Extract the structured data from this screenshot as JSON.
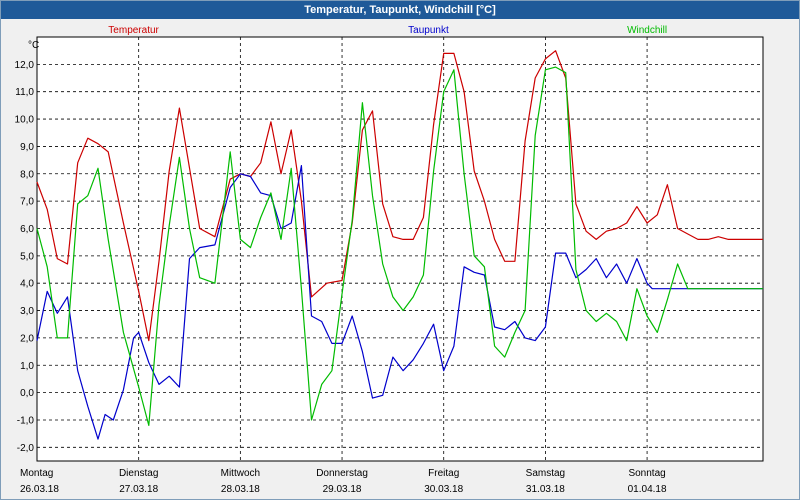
{
  "window": {
    "title": "Temperatur, Taupunkt, Windchill [°C]"
  },
  "chart_data": {
    "type": "line",
    "title": "Temperatur, Taupunkt, Windchill [°C]",
    "ylabel": "°C",
    "ylim": [
      -2.5,
      13.0
    ],
    "yticks": [
      -2.0,
      -1.0,
      0.0,
      1.0,
      2.0,
      3.0,
      4.0,
      5.0,
      6.0,
      7.0,
      8.0,
      9.0,
      10.0,
      11.0,
      12.0
    ],
    "ytick_labels": [
      "-2,0",
      "-1,0",
      "0,0",
      "1,0",
      "2,0",
      "3,0",
      "4,0",
      "5,0",
      "6,0",
      "7,0",
      "8,0",
      "9,0",
      "10,0",
      "11,0",
      "12,0"
    ],
    "xlim_days": [
      0,
      7.14
    ],
    "x_unit": "days since 26.03.18 00:00",
    "days": [
      {
        "weekday": "Montag",
        "date": "26.03.18"
      },
      {
        "weekday": "Dienstag",
        "date": "27.03.18"
      },
      {
        "weekday": "Mittwoch",
        "date": "28.03.18"
      },
      {
        "weekday": "Donnerstag",
        "date": "29.03.18"
      },
      {
        "weekday": "Freitag",
        "date": "30.03.18"
      },
      {
        "weekday": "Samstag",
        "date": "31.03.18"
      },
      {
        "weekday": "Sonntag",
        "date": "01.04.18"
      }
    ],
    "grid": true,
    "series": [
      {
        "name": "Temperatur",
        "color": "#cc0000",
        "x": [
          0.0,
          0.1,
          0.2,
          0.3,
          0.4,
          0.5,
          0.6,
          0.7,
          0.85,
          1.0,
          1.1,
          1.2,
          1.3,
          1.4,
          1.6,
          1.75,
          1.9,
          2.0,
          2.1,
          2.2,
          2.3,
          2.4,
          2.5,
          2.6,
          2.7,
          2.85,
          3.0,
          3.1,
          3.2,
          3.3,
          3.4,
          3.5,
          3.6,
          3.7,
          3.8,
          3.9,
          4.0,
          4.1,
          4.2,
          4.3,
          4.4,
          4.5,
          4.6,
          4.7,
          4.8,
          4.9,
          5.0,
          5.1,
          5.2,
          5.3,
          5.4,
          5.5,
          5.6,
          5.7,
          5.8,
          5.9,
          6.0,
          6.1,
          6.2,
          6.3,
          6.4,
          6.5,
          6.6,
          6.7,
          6.8,
          6.9,
          7.0,
          7.1,
          7.14
        ],
        "y": [
          7.7,
          6.7,
          4.9,
          4.7,
          8.4,
          9.3,
          9.1,
          8.8,
          6.2,
          3.7,
          1.9,
          4.8,
          8.1,
          10.4,
          6.0,
          5.7,
          7.8,
          8.0,
          7.9,
          8.4,
          9.9,
          8.0,
          9.6,
          7.0,
          3.5,
          4.0,
          4.1,
          6.2,
          9.6,
          10.3,
          6.9,
          5.7,
          5.6,
          5.6,
          6.4,
          9.8,
          12.4,
          12.4,
          11.0,
          8.1,
          7.0,
          5.6,
          4.8,
          4.8,
          9.2,
          11.5,
          12.2,
          12.5,
          11.5,
          6.9,
          5.9,
          5.6,
          5.9,
          6.0,
          6.2,
          6.8,
          6.2,
          6.5,
          7.6,
          6.0,
          5.8,
          5.6,
          5.6,
          5.7,
          5.6,
          5.6,
          5.6,
          5.6,
          5.6
        ]
      },
      {
        "name": "Taupunkt",
        "color": "#0000cc",
        "x": [
          0.0,
          0.1,
          0.2,
          0.3,
          0.4,
          0.5,
          0.6,
          0.67,
          0.75,
          0.85,
          0.95,
          1.0,
          1.1,
          1.2,
          1.3,
          1.4,
          1.5,
          1.6,
          1.75,
          1.9,
          2.0,
          2.1,
          2.2,
          2.3,
          2.4,
          2.5,
          2.6,
          2.7,
          2.8,
          2.9,
          3.0,
          3.1,
          3.2,
          3.3,
          3.4,
          3.5,
          3.6,
          3.7,
          3.8,
          3.9,
          4.0,
          4.1,
          4.2,
          4.3,
          4.4,
          4.5,
          4.6,
          4.7,
          4.8,
          4.9,
          5.0,
          5.1,
          5.2,
          5.3,
          5.4,
          5.5,
          5.6,
          5.7,
          5.8,
          5.9,
          6.0,
          6.05,
          6.1,
          6.2,
          6.3,
          6.4,
          6.5,
          6.6,
          6.7,
          6.8,
          6.9,
          7.0,
          7.1,
          7.14
        ],
        "y": [
          1.9,
          3.7,
          2.9,
          3.5,
          0.8,
          -0.5,
          -1.7,
          -0.8,
          -1.0,
          0.1,
          2.0,
          2.2,
          1.1,
          0.3,
          0.6,
          0.2,
          4.9,
          5.3,
          5.4,
          7.5,
          8.0,
          7.9,
          7.3,
          7.2,
          6.0,
          6.2,
          8.3,
          2.8,
          2.6,
          1.8,
          1.8,
          2.8,
          1.5,
          -0.2,
          -0.1,
          1.3,
          0.8,
          1.2,
          1.8,
          2.5,
          0.8,
          1.7,
          4.6,
          4.4,
          4.3,
          2.4,
          2.3,
          2.6,
          2.0,
          1.9,
          2.4,
          5.1,
          5.1,
          4.2,
          4.5,
          4.9,
          4.2,
          4.7,
          4.0,
          4.9,
          4.0,
          3.8,
          3.8,
          3.8,
          3.8,
          3.8,
          3.8,
          3.8,
          3.8,
          3.8,
          3.8,
          3.8,
          3.8,
          3.8
        ]
      },
      {
        "name": "Windchill",
        "color": "#00bb00",
        "x": [
          0.0,
          0.1,
          0.2,
          0.3,
          0.4,
          0.5,
          0.6,
          0.7,
          0.85,
          1.0,
          1.1,
          1.2,
          1.3,
          1.4,
          1.5,
          1.6,
          1.75,
          1.9,
          2.0,
          2.1,
          2.2,
          2.3,
          2.4,
          2.5,
          2.6,
          2.7,
          2.8,
          2.9,
          3.0,
          3.1,
          3.2,
          3.3,
          3.4,
          3.5,
          3.6,
          3.7,
          3.8,
          3.9,
          4.0,
          4.1,
          4.2,
          4.3,
          4.4,
          4.5,
          4.6,
          4.7,
          4.8,
          4.9,
          5.0,
          5.1,
          5.2,
          5.3,
          5.4,
          5.5,
          5.6,
          5.7,
          5.8,
          5.9,
          6.0,
          6.1,
          6.2,
          6.3,
          6.4,
          6.5,
          6.6,
          6.7,
          6.8,
          6.9,
          7.0,
          7.1,
          7.14
        ],
        "y": [
          6.0,
          4.6,
          2.0,
          2.0,
          6.9,
          7.2,
          8.2,
          5.6,
          2.2,
          0.2,
          -1.2,
          3.2,
          6.1,
          8.6,
          6.0,
          4.2,
          4.0,
          8.8,
          5.6,
          5.3,
          6.4,
          7.3,
          5.6,
          8.2,
          3.8,
          -1.0,
          0.3,
          0.8,
          3.6,
          6.3,
          10.6,
          7.2,
          4.7,
          3.5,
          3.0,
          3.5,
          4.3,
          8.1,
          11.0,
          11.8,
          8.0,
          5.0,
          4.6,
          1.7,
          1.3,
          2.2,
          3.0,
          9.4,
          11.8,
          11.9,
          11.7,
          4.5,
          3.0,
          2.6,
          2.9,
          2.6,
          1.9,
          3.8,
          2.8,
          2.2,
          3.4,
          4.7,
          3.8,
          3.8,
          3.8,
          3.8,
          3.8,
          3.8,
          3.8,
          3.8,
          3.8
        ]
      }
    ]
  }
}
